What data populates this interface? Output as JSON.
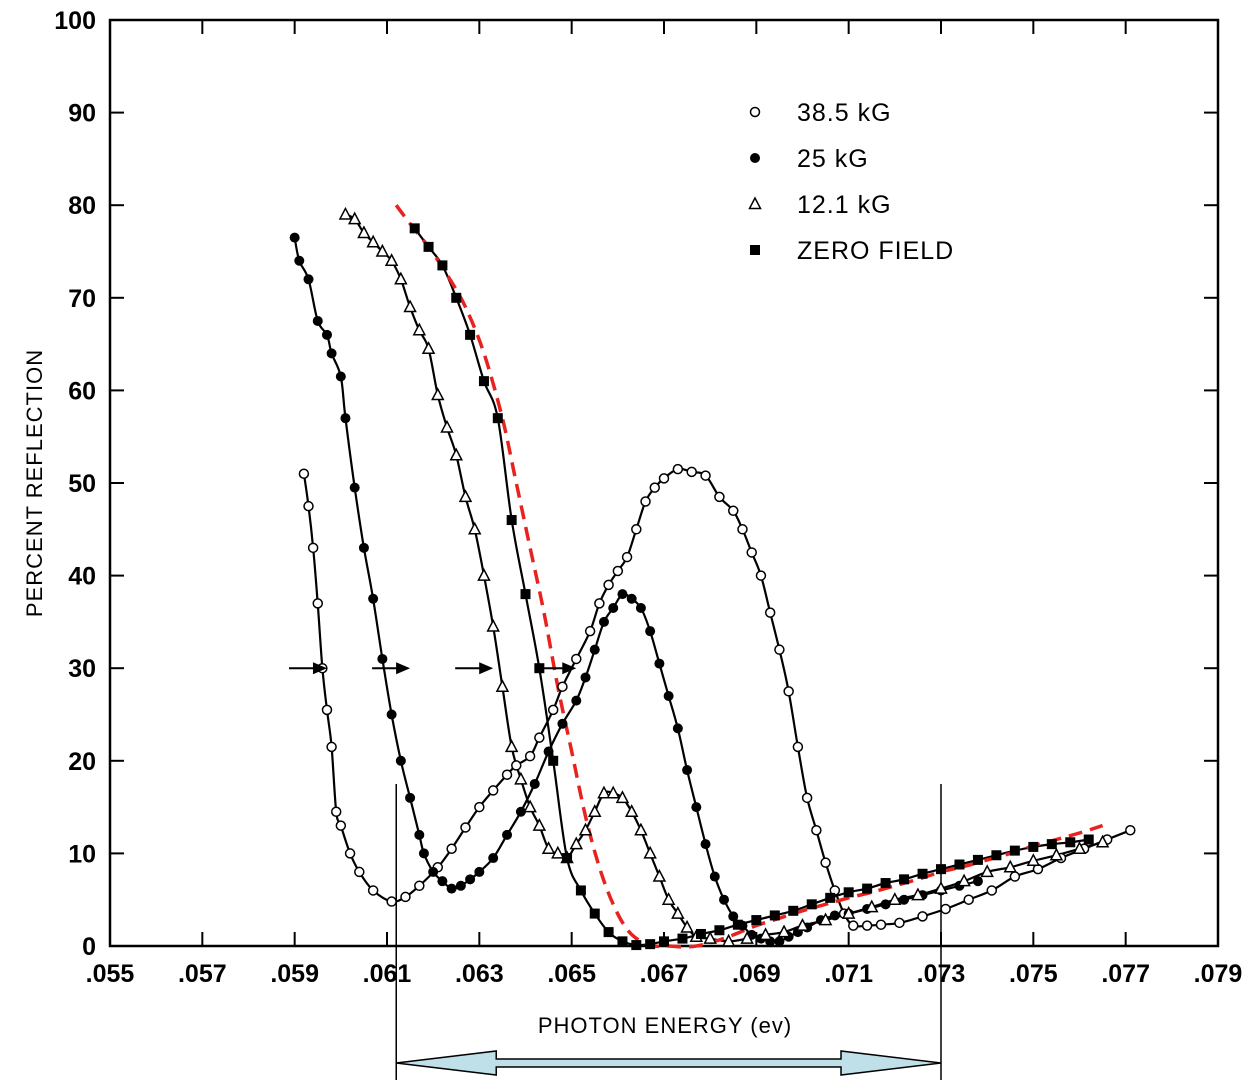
{
  "chart_data": {
    "type": "scatter",
    "title": "",
    "xlabel": "PHOTON ENERGY (ev)",
    "ylabel": "PERCENT REFLECTION",
    "xlim": [
      0.055,
      0.079
    ],
    "ylim": [
      0,
      100
    ],
    "xticks": [
      0.055,
      0.057,
      0.059,
      0.061,
      0.063,
      0.065,
      0.067,
      0.069,
      0.071,
      0.073,
      0.075,
      0.077,
      0.079
    ],
    "xtick_labels": [
      ".055",
      ".057",
      ".059",
      ".061",
      ".063",
      ".065",
      ".067",
      ".069",
      ".071",
      ".073",
      ".075",
      ".077",
      ".079"
    ],
    "yticks": [
      0,
      10,
      20,
      30,
      40,
      50,
      60,
      70,
      80,
      90,
      100
    ],
    "ytick_labels": [
      "0",
      "10",
      "20",
      "30",
      "40",
      "50",
      "60",
      "70",
      "80",
      "90",
      "100"
    ],
    "grid": false,
    "legend_position": "top-right",
    "series": [
      {
        "name": "38.5 kG",
        "marker": "open-circle",
        "color": "#000000",
        "x": [
          0.0592,
          0.0593,
          0.0594,
          0.0595,
          0.0596,
          0.0597,
          0.0598,
          0.0599,
          0.06,
          0.0602,
          0.0604,
          0.0607,
          0.0611,
          0.0614,
          0.0617,
          0.0621,
          0.0624,
          0.0627,
          0.063,
          0.0633,
          0.0636,
          0.0638,
          0.0641,
          0.0643,
          0.0646,
          0.0648,
          0.0651,
          0.0654,
          0.0656,
          0.0658,
          0.066,
          0.0662,
          0.0664,
          0.0666,
          0.0668,
          0.067,
          0.0673,
          0.0676,
          0.0679,
          0.0682,
          0.0685,
          0.0687,
          0.0689,
          0.0691,
          0.0693,
          0.0695,
          0.0697,
          0.0699,
          0.0701,
          0.0703,
          0.0705,
          0.0707,
          0.0709,
          0.0711,
          0.0714,
          0.0717,
          0.0721,
          0.0726,
          0.0731,
          0.0736,
          0.0741,
          0.0746,
          0.0751,
          0.0756,
          0.0761,
          0.0766,
          0.0771
        ],
        "y": [
          51,
          47.5,
          43,
          37,
          30,
          25.5,
          21.5,
          14.5,
          13,
          10,
          8,
          6,
          4.8,
          5.3,
          6.5,
          8.5,
          10.5,
          12.8,
          15,
          16.8,
          18.5,
          19.5,
          20.5,
          22.5,
          25.5,
          28,
          31,
          34,
          37,
          39,
          40.5,
          42,
          45,
          48,
          49.5,
          50.5,
          51.5,
          51.2,
          50.8,
          48.5,
          47,
          45,
          42.5,
          40,
          36,
          32,
          27.5,
          21.5,
          16,
          12.5,
          9,
          6,
          3.5,
          2.2,
          2.2,
          2.3,
          2.5,
          3.2,
          4,
          5,
          6,
          7.5,
          8.3,
          9.5,
          10.5,
          11.5,
          12.5
        ]
      },
      {
        "name": "25 kG",
        "marker": "filled-circle",
        "color": "#000000",
        "x": [
          0.059,
          0.0591,
          0.0593,
          0.0595,
          0.0597,
          0.0598,
          0.06,
          0.0601,
          0.0603,
          0.0605,
          0.0607,
          0.0609,
          0.0611,
          0.0613,
          0.0615,
          0.0617,
          0.0618,
          0.062,
          0.0622,
          0.0624,
          0.0626,
          0.0628,
          0.063,
          0.0633,
          0.0636,
          0.0639,
          0.0642,
          0.0645,
          0.0648,
          0.0651,
          0.0653,
          0.0655,
          0.0657,
          0.0659,
          0.0661,
          0.0663,
          0.0665,
          0.0667,
          0.0669,
          0.0671,
          0.0673,
          0.0675,
          0.0677,
          0.0679,
          0.0681,
          0.0683,
          0.0685,
          0.0687,
          0.0689,
          0.0691,
          0.0693,
          0.0695,
          0.0697,
          0.0699,
          0.0701,
          0.0704,
          0.0707,
          0.071,
          0.0714,
          0.0718,
          0.0722,
          0.0726,
          0.073,
          0.0734,
          0.0738
        ],
        "y": [
          76.5,
          74,
          72,
          67.5,
          66,
          64,
          61.5,
          57,
          49.5,
          43,
          37.5,
          31,
          25,
          20,
          16,
          12,
          10,
          8,
          7,
          6.2,
          6.5,
          7.2,
          8,
          9.5,
          12,
          14.5,
          17.5,
          21,
          24,
          26.5,
          29,
          32,
          35,
          36.5,
          38,
          37.5,
          36.5,
          34,
          30.5,
          27,
          23.5,
          19,
          15,
          11,
          7.5,
          5,
          3.2,
          2.2,
          1.2,
          0.8,
          0.5,
          0.5,
          1,
          1.5,
          2,
          2.8,
          3.3,
          3.5,
          4,
          4.5,
          5,
          5.5,
          6,
          6.5,
          7
        ]
      },
      {
        "name": "12.1 kG",
        "marker": "open-triangle",
        "color": "#000000",
        "x": [
          0.0601,
          0.0603,
          0.0605,
          0.0607,
          0.0609,
          0.0611,
          0.0613,
          0.0615,
          0.0617,
          0.0619,
          0.0621,
          0.0623,
          0.0625,
          0.0627,
          0.0629,
          0.0631,
          0.0633,
          0.0635,
          0.0637,
          0.0639,
          0.0641,
          0.0643,
          0.0645,
          0.0647,
          0.0649,
          0.0651,
          0.0653,
          0.0655,
          0.0657,
          0.0659,
          0.0661,
          0.0663,
          0.0665,
          0.0667,
          0.0669,
          0.0671,
          0.0673,
          0.0675,
          0.0677,
          0.068,
          0.0684,
          0.0688,
          0.0692,
          0.0696,
          0.07,
          0.0705,
          0.071,
          0.0715,
          0.072,
          0.0725,
          0.073,
          0.0735,
          0.074,
          0.0745,
          0.075,
          0.0755,
          0.076,
          0.0765
        ],
        "y": [
          79,
          78.5,
          77,
          76,
          75,
          74,
          72,
          69,
          66.5,
          64.5,
          59.5,
          56,
          53,
          48.5,
          45,
          40,
          34.5,
          28,
          21.5,
          18,
          15,
          13,
          10.5,
          10,
          9.5,
          11,
          12.5,
          14.5,
          16.5,
          16.5,
          16,
          14.5,
          12.5,
          10,
          7.5,
          5,
          3.5,
          2,
          1,
          0.8,
          0.5,
          0.8,
          1.2,
          1.5,
          2.2,
          2.8,
          3.5,
          4.2,
          5,
          5.5,
          6.2,
          7,
          8,
          8.5,
          9.2,
          9.8,
          10.5,
          11.2
        ]
      },
      {
        "name": "ZERO FIELD",
        "marker": "filled-square",
        "color": "#000000",
        "x": [
          0.0616,
          0.0619,
          0.0622,
          0.0625,
          0.0628,
          0.0631,
          0.0634,
          0.0637,
          0.064,
          0.0643,
          0.0646,
          0.0649,
          0.0652,
          0.0655,
          0.0658,
          0.0661,
          0.0664,
          0.0667,
          0.067,
          0.0674,
          0.0678,
          0.0682,
          0.0686,
          0.069,
          0.0694,
          0.0698,
          0.0702,
          0.0706,
          0.071,
          0.0714,
          0.0718,
          0.0722,
          0.0726,
          0.073,
          0.0734,
          0.0738,
          0.0742,
          0.0746,
          0.075,
          0.0754,
          0.0758,
          0.0762
        ],
        "y": [
          77.5,
          75.5,
          73.5,
          70,
          66,
          61,
          57,
          46,
          38,
          30,
          20,
          9.5,
          6,
          3.5,
          1.5,
          0.5,
          0.1,
          0.2,
          0.5,
          0.8,
          1.3,
          1.7,
          2.3,
          2.8,
          3.3,
          3.8,
          4.5,
          5.2,
          5.8,
          6.2,
          6.8,
          7.2,
          7.8,
          8.3,
          8.8,
          9.3,
          9.8,
          10.3,
          10.7,
          11,
          11.2,
          11.5
        ]
      }
    ],
    "annotations": [
      {
        "type": "arrow",
        "direction": "right",
        "x": 0.0597,
        "y": 30
      },
      {
        "type": "arrow",
        "direction": "right",
        "x": 0.0615,
        "y": 30
      },
      {
        "type": "arrow",
        "direction": "right",
        "x": 0.0633,
        "y": 30
      },
      {
        "type": "arrow",
        "direction": "right",
        "x": 0.0651,
        "y": 30
      }
    ],
    "overlay": {
      "dashed_fit": {
        "color": "#e8231f",
        "x": [
          0.0612,
          0.0615,
          0.0619,
          0.0623,
          0.0627,
          0.0631,
          0.0635,
          0.0638,
          0.0641,
          0.0644,
          0.0647,
          0.065,
          0.0653,
          0.0656,
          0.0659,
          0.0662,
          0.0665,
          0.0668,
          0.0671,
          0.0674,
          0.0677,
          0.0681,
          0.0685,
          0.069,
          0.0695,
          0.07,
          0.0705,
          0.071,
          0.0715,
          0.072,
          0.0725,
          0.073,
          0.0735,
          0.074,
          0.0745,
          0.075,
          0.0755,
          0.076,
          0.0765
        ],
        "y": [
          80,
          78,
          75.5,
          72.5,
          69,
          64,
          57,
          50,
          43,
          36,
          28,
          21,
          14,
          8.5,
          4.5,
          1.8,
          0.5,
          0,
          0,
          -0.1,
          0,
          0.5,
          1.2,
          2.2,
          3,
          3.8,
          4.5,
          5.2,
          5.8,
          6.5,
          7.2,
          8,
          8.6,
          9.3,
          10,
          10.8,
          11.5,
          12.2,
          13
        ]
      },
      "range_bracket": {
        "x_start": 0.0612,
        "x_end": 0.073,
        "y_top": 17.5,
        "color": "#bfe0e8"
      }
    }
  }
}
